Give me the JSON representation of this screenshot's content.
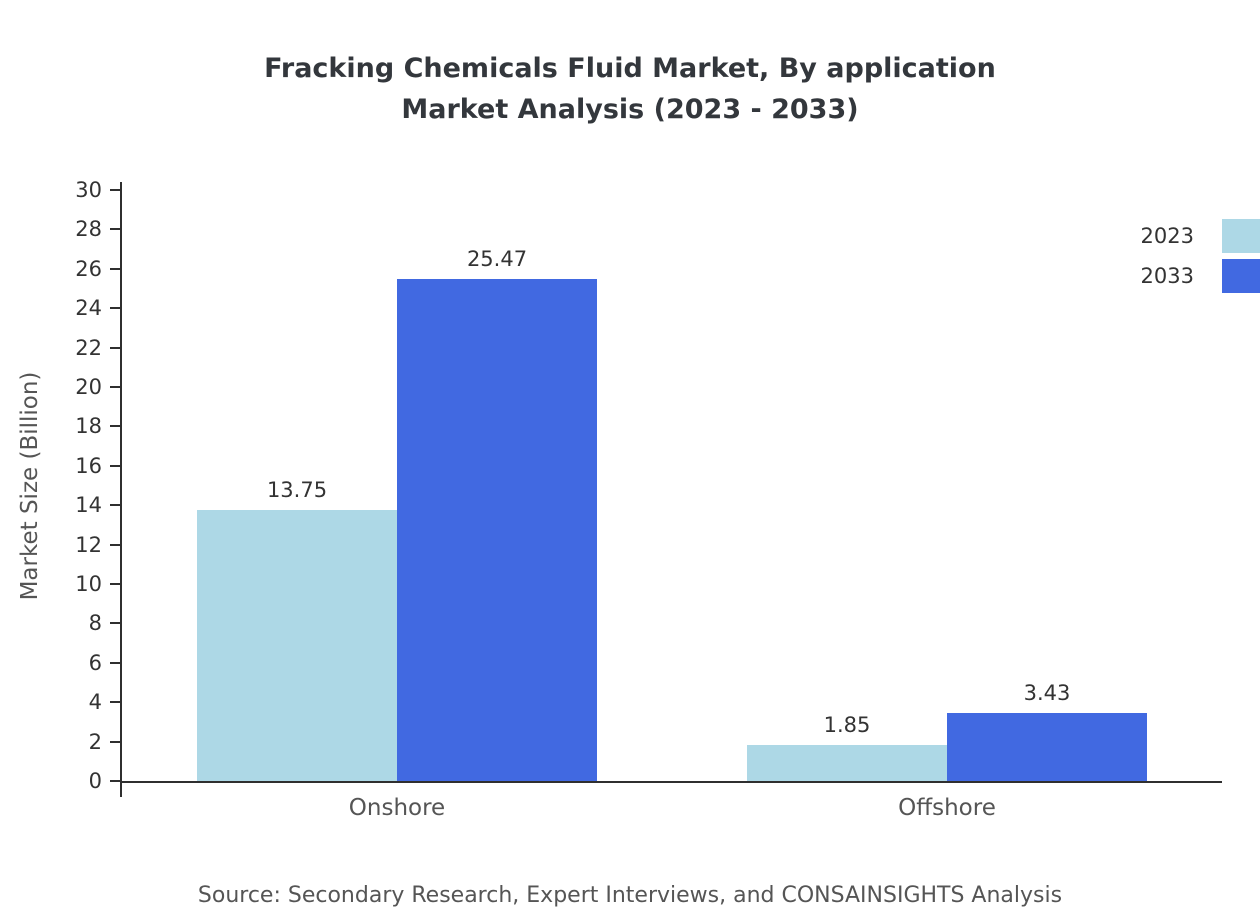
{
  "title": {
    "line1": "Fracking Chemicals Fluid Market, By application",
    "line2": "Market Analysis (2023 - 2033)"
  },
  "chart_data": {
    "type": "bar",
    "categories": [
      "Onshore",
      "Offshore"
    ],
    "series": [
      {
        "name": "2023",
        "color": "#ADD8E6",
        "values": [
          13.75,
          1.85
        ],
        "labels": [
          "13.75",
          "1.85"
        ]
      },
      {
        "name": "2033",
        "color": "#4169E1",
        "values": [
          25.47,
          3.43
        ],
        "labels": [
          "25.47",
          "3.43"
        ]
      }
    ],
    "title": "Fracking Chemicals Fluid Market, By application Market Analysis (2023 - 2033)",
    "xlabel": "",
    "ylabel": "Market Size (Billion)",
    "ylim": [
      0,
      30
    ],
    "ytick_step": 2,
    "grid": false,
    "legend_position": "top-right"
  },
  "footer": {
    "source": "Source: Secondary Research, Expert Interviews, and CONSAINSIGHTS Analysis"
  }
}
